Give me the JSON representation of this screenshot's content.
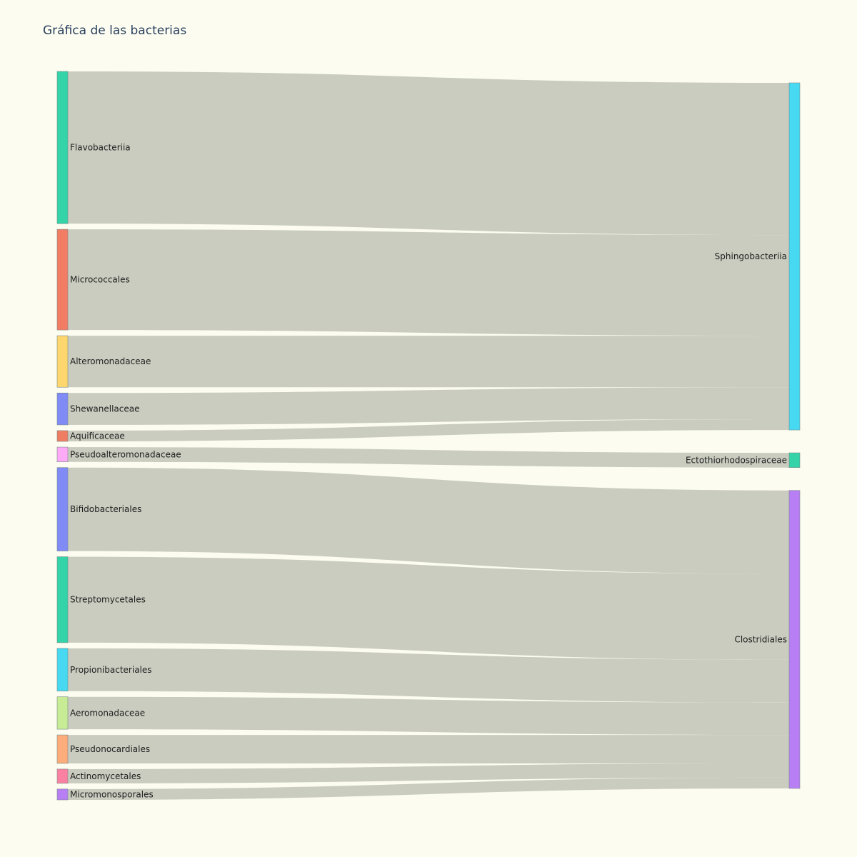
{
  "chart_data": {
    "type": "sankey",
    "title": "Gráfica de las bacterias",
    "link_color": "#c9ccbf",
    "node_border_color": "#7a8a8a",
    "sources": [
      {
        "name": "Flavobacteriia",
        "color": "#35d3a8",
        "value": 31
      },
      {
        "name": "Micrococcales",
        "color": "#f37d64",
        "value": 20.5
      },
      {
        "name": "Alteromonadaceae",
        "color": "#fed66e",
        "value": 10.5
      },
      {
        "name": "Shewanellaceae",
        "color": "#818bf5",
        "value": 6.5
      },
      {
        "name": "Aquificaceae",
        "color": "#ef7d64",
        "value": 2.2
      },
      {
        "name": "Pseudoalteromonadaceae",
        "color": "#feabf7",
        "value": 3
      },
      {
        "name": "Bifidobacteriales",
        "color": "#818bf5",
        "value": 17
      },
      {
        "name": "Streptomycetales",
        "color": "#35d3a8",
        "value": 17.5
      },
      {
        "name": "Propionibacteriales",
        "color": "#47d9f2",
        "value": 8.7
      },
      {
        "name": "Aeromonadaceae",
        "color": "#c8ec96",
        "value": 6.6
      },
      {
        "name": "Pseudonocardiales",
        "color": "#fcad7b",
        "value": 5.8
      },
      {
        "name": "Actinomycetales",
        "color": "#fb81a2",
        "value": 2.9
      },
      {
        "name": "Micromonosporales",
        "color": "#b87ff5",
        "value": 2.2
      }
    ],
    "targets": [
      {
        "name": "Sphingobacteriia",
        "color": "#47d9f2"
      },
      {
        "name": "Ectothiorhodospiraceae",
        "color": "#35d3a8"
      },
      {
        "name": "Clostridiales",
        "color": "#b87ff5"
      }
    ],
    "links": [
      {
        "source": "Flavobacteriia",
        "target": "Sphingobacteriia",
        "value": 31
      },
      {
        "source": "Micrococcales",
        "target": "Sphingobacteriia",
        "value": 20.5
      },
      {
        "source": "Alteromonadaceae",
        "target": "Sphingobacteriia",
        "value": 10.5
      },
      {
        "source": "Shewanellaceae",
        "target": "Sphingobacteriia",
        "value": 6.5
      },
      {
        "source": "Aquificaceae",
        "target": "Sphingobacteriia",
        "value": 2.2
      },
      {
        "source": "Pseudoalteromonadaceae",
        "target": "Ectothiorhodospiraceae",
        "value": 3
      },
      {
        "source": "Bifidobacteriales",
        "target": "Clostridiales",
        "value": 17
      },
      {
        "source": "Streptomycetales",
        "target": "Clostridiales",
        "value": 17.5
      },
      {
        "source": "Propionibacteriales",
        "target": "Clostridiales",
        "value": 8.7
      },
      {
        "source": "Aeromonadaceae",
        "target": "Clostridiales",
        "value": 6.6
      },
      {
        "source": "Pseudonocardiales",
        "target": "Clostridiales",
        "value": 5.8
      },
      {
        "source": "Actinomycetales",
        "target": "Clostridiales",
        "value": 2.9
      },
      {
        "source": "Micromonosporales",
        "target": "Clostridiales",
        "value": 2.2
      }
    ]
  }
}
